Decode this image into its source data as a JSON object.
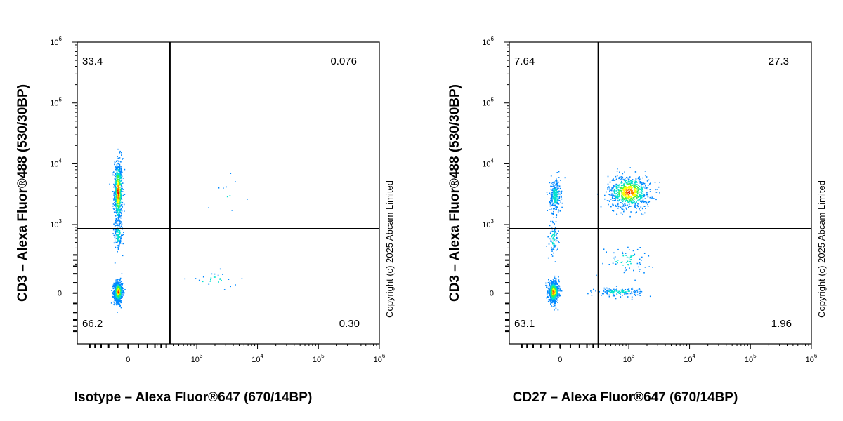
{
  "chart_data": [
    {
      "type": "scatter",
      "xlabel": "Isotype – Alexa Fluor®647 (670/14BP)",
      "ylabel": "CD3 – Alexa Fluor®488 (530/30BP)",
      "x_ticks": [
        {
          "base": "0",
          "exp": ""
        },
        {
          "base": "10",
          "exp": "3"
        },
        {
          "base": "10",
          "exp": "4"
        },
        {
          "base": "10",
          "exp": "5"
        },
        {
          "base": "10",
          "exp": "6"
        }
      ],
      "y_ticks": [
        {
          "base": "0",
          "exp": ""
        },
        {
          "base": "10",
          "exp": "3"
        },
        {
          "base": "10",
          "exp": "4"
        },
        {
          "base": "10",
          "exp": "5"
        },
        {
          "base": "10",
          "exp": "6"
        }
      ],
      "gate": {
        "x": 350,
        "y": 850
      },
      "quadrants": {
        "upper_left": "33.4",
        "upper_right": "0.076",
        "lower_left": "66.2",
        "lower_right": "0.30"
      },
      "populations": [
        {
          "x": -60,
          "y": 3500,
          "count": 620,
          "spread": [
            0.02,
            0.16
          ],
          "density": "high"
        },
        {
          "x": -60,
          "y": 10,
          "count": 720,
          "spread": [
            0.02,
            0.05
          ],
          "density": "high"
        },
        {
          "x": -60,
          "y": 700,
          "count": 140,
          "spread": [
            0.02,
            0.07
          ],
          "density": "low"
        },
        {
          "x": 1800,
          "y": 80,
          "count": 25,
          "spread": [
            0.12,
            0.04
          ],
          "density": "low"
        },
        {
          "x": 4000,
          "y": 3500,
          "count": 10,
          "spread": [
            0.08,
            0.08
          ],
          "density": "low"
        }
      ],
      "copyright": "Copyright (c) 2025 Abcam Limited"
    },
    {
      "type": "scatter",
      "xlabel": "CD27 – Alexa Fluor®647 (670/14BP)",
      "ylabel": "CD3 – Alexa Fluor®488 (530/30BP)",
      "x_ticks": [
        {
          "base": "0",
          "exp": ""
        },
        {
          "base": "10",
          "exp": "3"
        },
        {
          "base": "10",
          "exp": "4"
        },
        {
          "base": "10",
          "exp": "5"
        },
        {
          "base": "10",
          "exp": "6"
        }
      ],
      "y_ticks": [
        {
          "base": "0",
          "exp": ""
        },
        {
          "base": "10",
          "exp": "3"
        },
        {
          "base": "10",
          "exp": "4"
        },
        {
          "base": "10",
          "exp": "5"
        },
        {
          "base": "10",
          "exp": "6"
        }
      ],
      "gate": {
        "x": 300,
        "y": 850
      },
      "quadrants": {
        "upper_left": "7.64",
        "upper_right": "27.3",
        "lower_left": "63.1",
        "lower_right": "1.96"
      },
      "populations": [
        {
          "x": 1000,
          "y": 3500,
          "count": 700,
          "spread": [
            0.1,
            0.08
          ],
          "density": "high"
        },
        {
          "x": -30,
          "y": 3000,
          "count": 260,
          "spread": [
            0.025,
            0.08
          ],
          "density": "low"
        },
        {
          "x": -40,
          "y": 10,
          "count": 700,
          "spread": [
            0.025,
            0.05
          ],
          "density": "high"
        },
        {
          "x": -40,
          "y": 600,
          "count": 90,
          "spread": [
            0.02,
            0.08
          ],
          "density": "low"
        },
        {
          "x": 700,
          "y": 10,
          "count": 130,
          "spread": [
            0.11,
            0.02
          ],
          "density": "low"
        },
        {
          "x": 900,
          "y": 250,
          "count": 70,
          "spread": [
            0.12,
            0.06
          ],
          "density": "low"
        }
      ],
      "copyright": "Copyright (c) 2025 Abcam Limited"
    }
  ]
}
